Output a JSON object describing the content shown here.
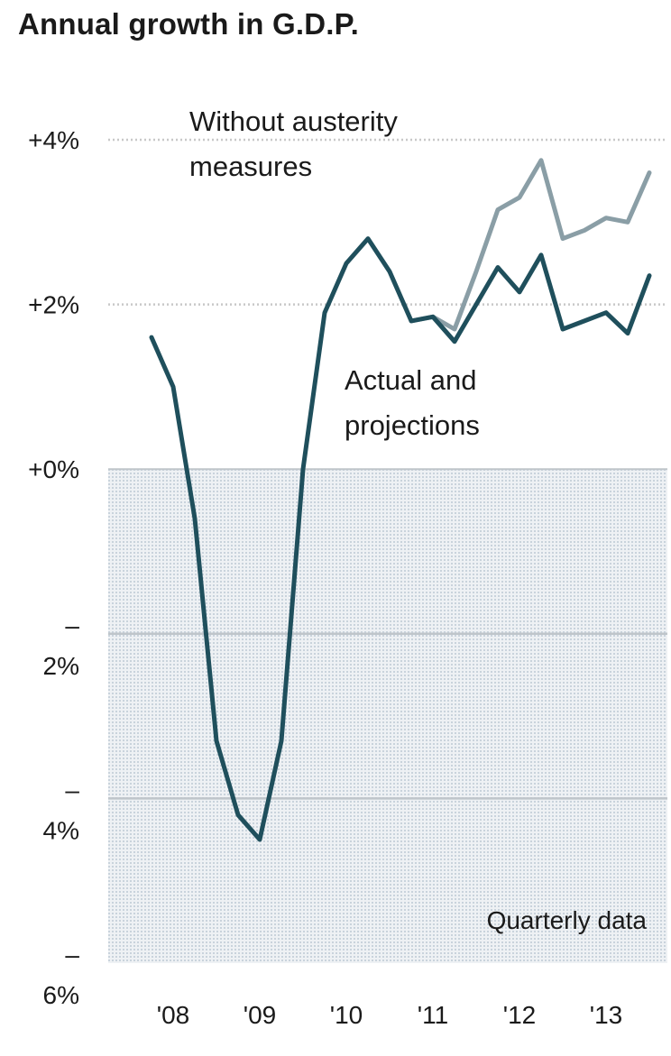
{
  "chart_data": {
    "type": "line",
    "title": "Annual growth in G.D.P.",
    "xlabel": "",
    "ylabel": "",
    "x_tick_labels": [
      "'08",
      "'09",
      "'10",
      "'11",
      "'12",
      "'13"
    ],
    "y_tick_labels": [
      "+4%",
      "+2%",
      "+0%",
      "–\n2%",
      "–\n4%",
      "–\n6%"
    ],
    "ylim": [
      -6,
      4
    ],
    "note": "Quarterly data",
    "grid": true,
    "series": [
      {
        "name": "Actual and projections",
        "color": "#1f4f5c",
        "points": [
          {
            "x": 2007.75,
            "y": 1.6
          },
          {
            "x": 2008.0,
            "y": 1.0
          },
          {
            "x": 2008.25,
            "y": -0.6
          },
          {
            "x": 2008.5,
            "y": -3.3
          },
          {
            "x": 2008.75,
            "y": -4.2
          },
          {
            "x": 2009.0,
            "y": -4.5
          },
          {
            "x": 2009.25,
            "y": -3.3
          },
          {
            "x": 2009.5,
            "y": 0.0
          },
          {
            "x": 2009.75,
            "y": 1.9
          },
          {
            "x": 2010.0,
            "y": 2.5
          },
          {
            "x": 2010.25,
            "y": 2.8
          },
          {
            "x": 2010.5,
            "y": 2.4
          },
          {
            "x": 2010.75,
            "y": 1.8
          },
          {
            "x": 2011.0,
            "y": 1.85
          },
          {
            "x": 2011.25,
            "y": 1.55
          },
          {
            "x": 2011.5,
            "y": 2.0
          },
          {
            "x": 2011.75,
            "y": 2.45
          },
          {
            "x": 2012.0,
            "y": 2.15
          },
          {
            "x": 2012.25,
            "y": 2.6
          },
          {
            "x": 2012.5,
            "y": 1.7
          },
          {
            "x": 2012.75,
            "y": 1.8
          },
          {
            "x": 2013.0,
            "y": 1.9
          },
          {
            "x": 2013.25,
            "y": 1.65
          },
          {
            "x": 2013.5,
            "y": 2.35
          }
        ]
      },
      {
        "name": "Without austerity measures",
        "color": "#8a9ea6",
        "points": [
          {
            "x": 2010.75,
            "y": 1.8
          },
          {
            "x": 2011.0,
            "y": 1.85
          },
          {
            "x": 2011.25,
            "y": 1.7
          },
          {
            "x": 2011.5,
            "y": 2.4
          },
          {
            "x": 2011.75,
            "y": 3.15
          },
          {
            "x": 2012.0,
            "y": 3.3
          },
          {
            "x": 2012.25,
            "y": 3.75
          },
          {
            "x": 2012.5,
            "y": 2.8
          },
          {
            "x": 2012.75,
            "y": 2.9
          },
          {
            "x": 2013.0,
            "y": 3.05
          },
          {
            "x": 2013.25,
            "y": 3.0
          },
          {
            "x": 2013.5,
            "y": 3.6
          }
        ]
      }
    ],
    "annotations": {
      "without_austerity": [
        "Without austerity",
        "measures"
      ],
      "actual": [
        "Actual and",
        "projections"
      ]
    }
  }
}
